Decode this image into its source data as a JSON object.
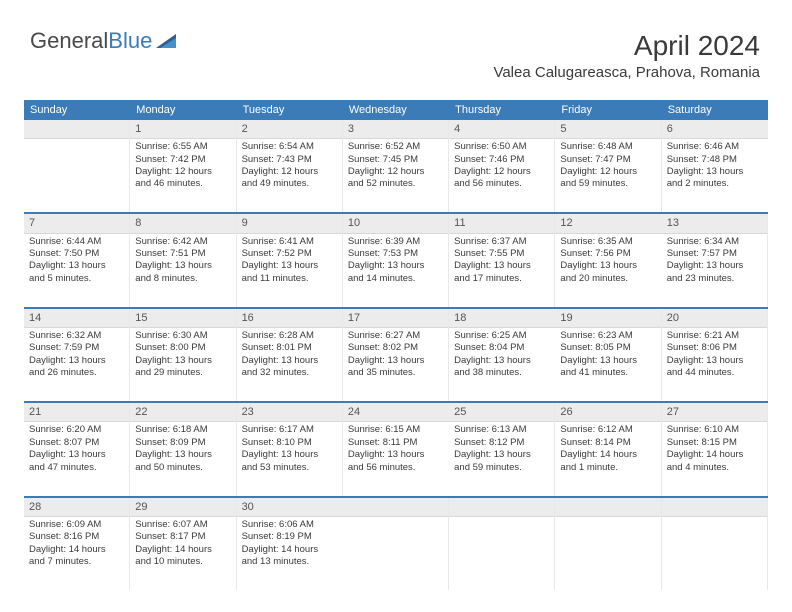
{
  "logo": {
    "text_general": "General",
    "text_blue": "Blue"
  },
  "header": {
    "title": "April 2024",
    "location": "Valea Calugareasca, Prahova, Romania"
  },
  "colors": {
    "header_bg": "#3a7bb8",
    "header_text": "#ffffff",
    "daybar_bg": "#ececec",
    "rule": "#3a7bb8",
    "text": "#3a3a3a"
  },
  "weekdays": [
    "Sunday",
    "Monday",
    "Tuesday",
    "Wednesday",
    "Thursday",
    "Friday",
    "Saturday"
  ],
  "cells": [
    {
      "blank": true
    },
    {
      "day": "1",
      "sunrise": "Sunrise: 6:55 AM",
      "sunset": "Sunset: 7:42 PM",
      "dl1": "Daylight: 12 hours",
      "dl2": "and 46 minutes."
    },
    {
      "day": "2",
      "sunrise": "Sunrise: 6:54 AM",
      "sunset": "Sunset: 7:43 PM",
      "dl1": "Daylight: 12 hours",
      "dl2": "and 49 minutes."
    },
    {
      "day": "3",
      "sunrise": "Sunrise: 6:52 AM",
      "sunset": "Sunset: 7:45 PM",
      "dl1": "Daylight: 12 hours",
      "dl2": "and 52 minutes."
    },
    {
      "day": "4",
      "sunrise": "Sunrise: 6:50 AM",
      "sunset": "Sunset: 7:46 PM",
      "dl1": "Daylight: 12 hours",
      "dl2": "and 56 minutes."
    },
    {
      "day": "5",
      "sunrise": "Sunrise: 6:48 AM",
      "sunset": "Sunset: 7:47 PM",
      "dl1": "Daylight: 12 hours",
      "dl2": "and 59 minutes."
    },
    {
      "day": "6",
      "sunrise": "Sunrise: 6:46 AM",
      "sunset": "Sunset: 7:48 PM",
      "dl1": "Daylight: 13 hours",
      "dl2": "and 2 minutes."
    },
    {
      "day": "7",
      "sunrise": "Sunrise: 6:44 AM",
      "sunset": "Sunset: 7:50 PM",
      "dl1": "Daylight: 13 hours",
      "dl2": "and 5 minutes."
    },
    {
      "day": "8",
      "sunrise": "Sunrise: 6:42 AM",
      "sunset": "Sunset: 7:51 PM",
      "dl1": "Daylight: 13 hours",
      "dl2": "and 8 minutes."
    },
    {
      "day": "9",
      "sunrise": "Sunrise: 6:41 AM",
      "sunset": "Sunset: 7:52 PM",
      "dl1": "Daylight: 13 hours",
      "dl2": "and 11 minutes."
    },
    {
      "day": "10",
      "sunrise": "Sunrise: 6:39 AM",
      "sunset": "Sunset: 7:53 PM",
      "dl1": "Daylight: 13 hours",
      "dl2": "and 14 minutes."
    },
    {
      "day": "11",
      "sunrise": "Sunrise: 6:37 AM",
      "sunset": "Sunset: 7:55 PM",
      "dl1": "Daylight: 13 hours",
      "dl2": "and 17 minutes."
    },
    {
      "day": "12",
      "sunrise": "Sunrise: 6:35 AM",
      "sunset": "Sunset: 7:56 PM",
      "dl1": "Daylight: 13 hours",
      "dl2": "and 20 minutes."
    },
    {
      "day": "13",
      "sunrise": "Sunrise: 6:34 AM",
      "sunset": "Sunset: 7:57 PM",
      "dl1": "Daylight: 13 hours",
      "dl2": "and 23 minutes."
    },
    {
      "day": "14",
      "sunrise": "Sunrise: 6:32 AM",
      "sunset": "Sunset: 7:59 PM",
      "dl1": "Daylight: 13 hours",
      "dl2": "and 26 minutes."
    },
    {
      "day": "15",
      "sunrise": "Sunrise: 6:30 AM",
      "sunset": "Sunset: 8:00 PM",
      "dl1": "Daylight: 13 hours",
      "dl2": "and 29 minutes."
    },
    {
      "day": "16",
      "sunrise": "Sunrise: 6:28 AM",
      "sunset": "Sunset: 8:01 PM",
      "dl1": "Daylight: 13 hours",
      "dl2": "and 32 minutes."
    },
    {
      "day": "17",
      "sunrise": "Sunrise: 6:27 AM",
      "sunset": "Sunset: 8:02 PM",
      "dl1": "Daylight: 13 hours",
      "dl2": "and 35 minutes."
    },
    {
      "day": "18",
      "sunrise": "Sunrise: 6:25 AM",
      "sunset": "Sunset: 8:04 PM",
      "dl1": "Daylight: 13 hours",
      "dl2": "and 38 minutes."
    },
    {
      "day": "19",
      "sunrise": "Sunrise: 6:23 AM",
      "sunset": "Sunset: 8:05 PM",
      "dl1": "Daylight: 13 hours",
      "dl2": "and 41 minutes."
    },
    {
      "day": "20",
      "sunrise": "Sunrise: 6:21 AM",
      "sunset": "Sunset: 8:06 PM",
      "dl1": "Daylight: 13 hours",
      "dl2": "and 44 minutes."
    },
    {
      "day": "21",
      "sunrise": "Sunrise: 6:20 AM",
      "sunset": "Sunset: 8:07 PM",
      "dl1": "Daylight: 13 hours",
      "dl2": "and 47 minutes."
    },
    {
      "day": "22",
      "sunrise": "Sunrise: 6:18 AM",
      "sunset": "Sunset: 8:09 PM",
      "dl1": "Daylight: 13 hours",
      "dl2": "and 50 minutes."
    },
    {
      "day": "23",
      "sunrise": "Sunrise: 6:17 AM",
      "sunset": "Sunset: 8:10 PM",
      "dl1": "Daylight: 13 hours",
      "dl2": "and 53 minutes."
    },
    {
      "day": "24",
      "sunrise": "Sunrise: 6:15 AM",
      "sunset": "Sunset: 8:11 PM",
      "dl1": "Daylight: 13 hours",
      "dl2": "and 56 minutes."
    },
    {
      "day": "25",
      "sunrise": "Sunrise: 6:13 AM",
      "sunset": "Sunset: 8:12 PM",
      "dl1": "Daylight: 13 hours",
      "dl2": "and 59 minutes."
    },
    {
      "day": "26",
      "sunrise": "Sunrise: 6:12 AM",
      "sunset": "Sunset: 8:14 PM",
      "dl1": "Daylight: 14 hours",
      "dl2": "and 1 minute."
    },
    {
      "day": "27",
      "sunrise": "Sunrise: 6:10 AM",
      "sunset": "Sunset: 8:15 PM",
      "dl1": "Daylight: 14 hours",
      "dl2": "and 4 minutes."
    },
    {
      "day": "28",
      "sunrise": "Sunrise: 6:09 AM",
      "sunset": "Sunset: 8:16 PM",
      "dl1": "Daylight: 14 hours",
      "dl2": "and 7 minutes."
    },
    {
      "day": "29",
      "sunrise": "Sunrise: 6:07 AM",
      "sunset": "Sunset: 8:17 PM",
      "dl1": "Daylight: 14 hours",
      "dl2": "and 10 minutes."
    },
    {
      "day": "30",
      "sunrise": "Sunrise: 6:06 AM",
      "sunset": "Sunset: 8:19 PM",
      "dl1": "Daylight: 14 hours",
      "dl2": "and 13 minutes."
    },
    {
      "blank": true
    },
    {
      "blank": true
    },
    {
      "blank": true
    },
    {
      "blank": true
    }
  ]
}
